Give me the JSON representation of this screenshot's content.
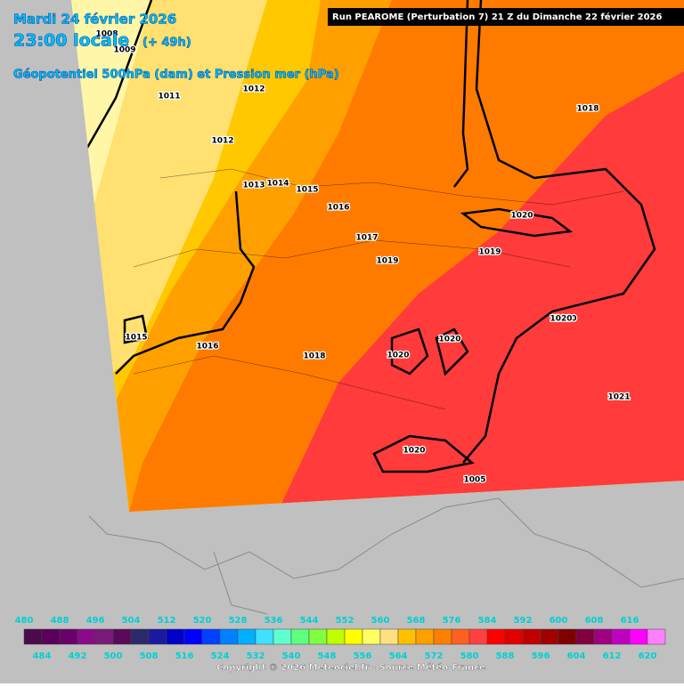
{
  "header": {
    "date": "Mardi 24 février 2026",
    "time": "23:00 locale",
    "lead": "(+ 49h)",
    "field": "Géopotentiel 500hPa (dam) et Pression mer (hPa)",
    "run": "Run PEAROME (Perturbation 7) 21 Z du Dimanche 22 février 2026"
  },
  "isobar_labels": [
    "1008",
    "1009",
    "1011",
    "1012",
    "1012",
    "1013",
    "1014",
    "1015",
    "1016",
    "1017",
    "1019",
    "1019",
    "1018",
    "1020",
    "1015",
    "1016",
    "1018",
    "1020",
    "1020",
    "1020",
    "1020",
    "1021",
    "1020",
    "1005"
  ],
  "colorbar": {
    "top_labels": [
      480,
      488,
      496,
      504,
      512,
      520,
      528,
      536,
      544,
      552,
      560,
      568,
      576,
      584,
      592,
      600,
      608,
      616
    ],
    "bottom_labels": [
      484,
      492,
      500,
      508,
      516,
      524,
      532,
      540,
      548,
      556,
      564,
      572,
      580,
      588,
      596,
      604,
      612,
      620
    ],
    "colors": [
      "#4b0a4b",
      "#5a005a",
      "#6a006a",
      "#8a0a8a",
      "#7a1a7a",
      "#5a0a5a",
      "#2a2a6a",
      "#1a1aa0",
      "#0000c8",
      "#0000ff",
      "#0040ff",
      "#0080ff",
      "#00b0ff",
      "#40e0ff",
      "#60ffd0",
      "#60ff80",
      "#80ff40",
      "#c0ff00",
      "#ffff00",
      "#ffff60",
      "#ffe080",
      "#ffc000",
      "#ffa000",
      "#ff8000",
      "#ff6020",
      "#ff4040",
      "#ff0000",
      "#e00000",
      "#c00000",
      "#a00000",
      "#800000",
      "#800040",
      "#a00080",
      "#c000c0",
      "#ff00ff",
      "#ff80ff"
    ]
  },
  "copyright": "Copyright © 2026 Meteociel.fr - Source Météo-France"
}
